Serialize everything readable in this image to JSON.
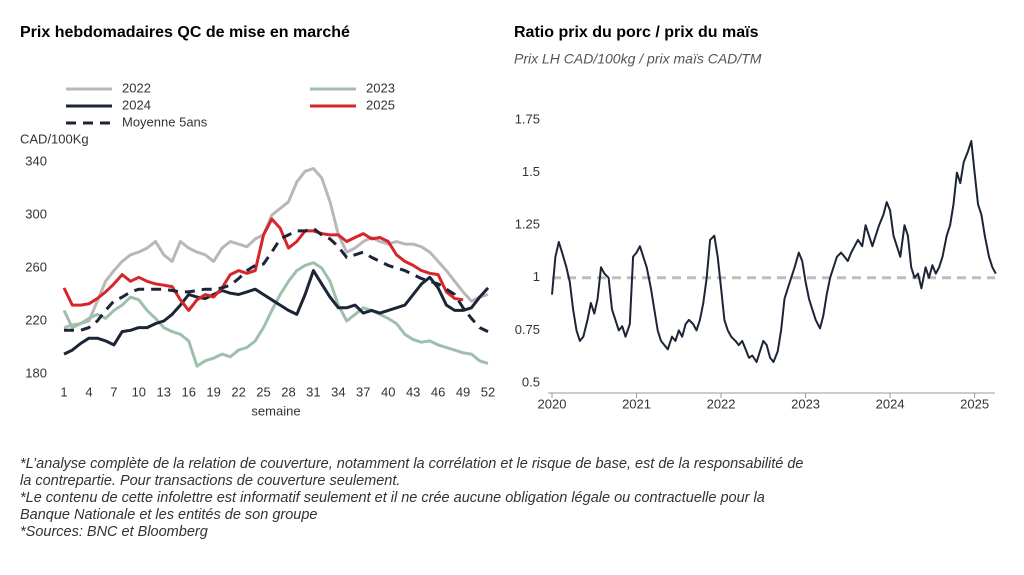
{
  "chart_data": [
    {
      "type": "line",
      "title": "Prix hebdomadaires QC de mise en marché",
      "ylabel": "CAD/100Kg",
      "xlabel": "semaine",
      "x": [
        1,
        2,
        3,
        4,
        5,
        6,
        7,
        8,
        9,
        10,
        11,
        12,
        13,
        14,
        15,
        16,
        17,
        18,
        19,
        20,
        21,
        22,
        23,
        24,
        25,
        26,
        27,
        28,
        29,
        30,
        31,
        32,
        33,
        34,
        35,
        36,
        37,
        38,
        39,
        40,
        41,
        42,
        43,
        44,
        45,
        46,
        47,
        48,
        49,
        50,
        51,
        52
      ],
      "xlim": [
        1,
        52
      ],
      "xticks": [
        1,
        4,
        7,
        10,
        13,
        16,
        19,
        22,
        25,
        28,
        31,
        34,
        37,
        40,
        43,
        46,
        49,
        52
      ],
      "ylim": [
        180,
        340
      ],
      "yticks": [
        180,
        220,
        260,
        300,
        340
      ],
      "series": [
        {
          "name": "2022",
          "color": "#b8b8b8",
          "values": [
            215,
            217,
            218,
            220,
            235,
            250,
            258,
            265,
            270,
            272,
            275,
            280,
            270,
            265,
            280,
            275,
            272,
            270,
            265,
            275,
            280,
            278,
            276,
            282,
            285,
            300,
            305,
            310,
            325,
            333,
            335,
            328,
            310,
            285,
            272,
            275,
            280,
            283,
            280,
            278,
            280,
            278,
            278,
            276,
            272,
            265,
            258,
            250,
            242,
            235,
            238,
            240
          ]
        },
        {
          "name": "2023",
          "color": "#9fbfad",
          "values": [
            228,
            215,
            218,
            222,
            225,
            222,
            228,
            232,
            238,
            236,
            228,
            222,
            215,
            212,
            210,
            205,
            186,
            190,
            192,
            195,
            193,
            198,
            200,
            205,
            215,
            228,
            240,
            250,
            258,
            262,
            264,
            260,
            250,
            232,
            220,
            225,
            230,
            228,
            225,
            222,
            218,
            210,
            206,
            204,
            205,
            202,
            200,
            198,
            196,
            195,
            190,
            188
          ]
        },
        {
          "name": "2024",
          "color": "#1c2536",
          "values": [
            195,
            198,
            203,
            207,
            207,
            205,
            202,
            212,
            213,
            215,
            215,
            218,
            220,
            225,
            232,
            240,
            238,
            237,
            240,
            243,
            241,
            240,
            242,
            244,
            240,
            236,
            232,
            228,
            225,
            240,
            258,
            248,
            238,
            230,
            230,
            232,
            226,
            228,
            226,
            228,
            230,
            232,
            240,
            248,
            253,
            245,
            232,
            228,
            228,
            230,
            238,
            245
          ]
        },
        {
          "name": "2025",
          "color": "#d7262b",
          "values": [
            245,
            232,
            232,
            233,
            237,
            242,
            248,
            255,
            250,
            253,
            250,
            248,
            247,
            246,
            236,
            228,
            236,
            240,
            238,
            245,
            255,
            258,
            256,
            258,
            285,
            297,
            290,
            275,
            280,
            288,
            288,
            286,
            285,
            285,
            280,
            283,
            286,
            282,
            283,
            280,
            270,
            265,
            262,
            258,
            256,
            255,
            242,
            237,
            236,
            null,
            null,
            null
          ]
        },
        {
          "name": "Moyenne 5ans",
          "color": "#1c2536",
          "dashed": true,
          "values": [
            213,
            213,
            213,
            215,
            220,
            228,
            235,
            238,
            242,
            244,
            244,
            244,
            244,
            243,
            242,
            242,
            243,
            244,
            244,
            245,
            247,
            252,
            258,
            262,
            263,
            272,
            282,
            285,
            288,
            288,
            290,
            285,
            282,
            276,
            268,
            270,
            272,
            268,
            265,
            262,
            260,
            258,
            255,
            252,
            250,
            248,
            244,
            240,
            230,
            222,
            215,
            212
          ]
        }
      ]
    },
    {
      "type": "line",
      "title": "Ratio prix du porc / prix du maïs",
      "subtitle": "Prix LH CAD/100kg / prix maïs CAD/TM",
      "x": [
        2020.0,
        2020.04,
        2020.08,
        2020.12,
        2020.17,
        2020.21,
        2020.25,
        2020.29,
        2020.33,
        2020.37,
        2020.42,
        2020.46,
        2020.5,
        2020.54,
        2020.58,
        2020.62,
        2020.67,
        2020.71,
        2020.75,
        2020.79,
        2020.83,
        2020.87,
        2020.92,
        2020.96,
        2021.0,
        2021.04,
        2021.08,
        2021.12,
        2021.17,
        2021.21,
        2021.25,
        2021.29,
        2021.33,
        2021.37,
        2021.42,
        2021.46,
        2021.5,
        2021.54,
        2021.58,
        2021.62,
        2021.67,
        2021.71,
        2021.75,
        2021.79,
        2021.83,
        2021.87,
        2021.92,
        2021.96,
        2022.0,
        2022.04,
        2022.08,
        2022.12,
        2022.17,
        2022.21,
        2022.25,
        2022.29,
        2022.33,
        2022.37,
        2022.42,
        2022.46,
        2022.5,
        2022.54,
        2022.58,
        2022.62,
        2022.67,
        2022.71,
        2022.75,
        2022.79,
        2022.83,
        2022.87,
        2022.92,
        2022.96,
        2023.0,
        2023.04,
        2023.08,
        2023.12,
        2023.17,
        2023.21,
        2023.25,
        2023.29,
        2023.33,
        2023.37,
        2023.42,
        2023.46,
        2023.5,
        2023.54,
        2023.58,
        2023.62,
        2023.67,
        2023.71,
        2023.75,
        2023.79,
        2023.83,
        2023.87,
        2023.92,
        2023.96,
        2024.0,
        2024.04,
        2024.08,
        2024.12,
        2024.17,
        2024.21,
        2024.25,
        2024.29,
        2024.33,
        2024.37,
        2024.42,
        2024.46,
        2024.5,
        2024.54,
        2024.58,
        2024.62,
        2024.67,
        2024.71,
        2024.75,
        2024.79,
        2024.83,
        2024.87,
        2024.92,
        2024.96,
        2025.0,
        2025.04,
        2025.08,
        2025.12,
        2025.17,
        2025.21,
        2025.25
      ],
      "values": [
        0.92,
        1.1,
        1.17,
        1.12,
        1.05,
        0.98,
        0.85,
        0.75,
        0.7,
        0.72,
        0.8,
        0.88,
        0.83,
        0.9,
        1.05,
        1.02,
        1.0,
        0.85,
        0.8,
        0.75,
        0.77,
        0.72,
        0.78,
        1.1,
        1.12,
        1.15,
        1.1,
        1.05,
        0.95,
        0.85,
        0.75,
        0.7,
        0.68,
        0.66,
        0.72,
        0.7,
        0.75,
        0.72,
        0.78,
        0.8,
        0.78,
        0.75,
        0.8,
        0.88,
        1.0,
        1.18,
        1.2,
        1.1,
        0.95,
        0.8,
        0.75,
        0.72,
        0.7,
        0.68,
        0.7,
        0.66,
        0.62,
        0.63,
        0.6,
        0.65,
        0.7,
        0.68,
        0.62,
        0.6,
        0.65,
        0.75,
        0.9,
        0.95,
        1.0,
        1.05,
        1.12,
        1.08,
        0.98,
        0.9,
        0.85,
        0.8,
        0.76,
        0.82,
        0.92,
        1.0,
        1.05,
        1.1,
        1.12,
        1.1,
        1.08,
        1.12,
        1.15,
        1.18,
        1.15,
        1.25,
        1.2,
        1.15,
        1.2,
        1.25,
        1.3,
        1.36,
        1.32,
        1.2,
        1.15,
        1.1,
        1.25,
        1.2,
        1.05,
        1.0,
        1.02,
        0.95,
        1.05,
        1.0,
        1.06,
        1.02,
        1.05,
        1.1,
        1.2,
        1.25,
        1.35,
        1.5,
        1.45,
        1.55,
        1.6,
        1.65,
        1.5,
        1.35,
        1.3,
        1.2,
        1.1,
        1.05,
        1.02
      ],
      "color": "#1c2536",
      "xlim": [
        2020,
        2025.3
      ],
      "xticks": [
        2020,
        2021,
        2022,
        2023,
        2024,
        2025
      ],
      "ylim": [
        0.5,
        1.75
      ],
      "yticks": [
        0.5,
        0.75,
        1,
        1.25,
        1.5,
        1.75
      ],
      "reference_line": {
        "value": 1,
        "color": "#bdbdbd"
      }
    }
  ],
  "notes": [
    "*L’analyse complète de la relation de couverture, notamment la corrélation et le risque de base, est de la responsabilité de la contrepartie. Pour transactions de couverture seulement.",
    "*Le contenu de cette infolettre est informatif seulement et il ne crée aucune obligation légale ou contractuelle pour la Banque Nationale et les entités de son groupe",
    "*Sources: BNC et Bloomberg"
  ]
}
